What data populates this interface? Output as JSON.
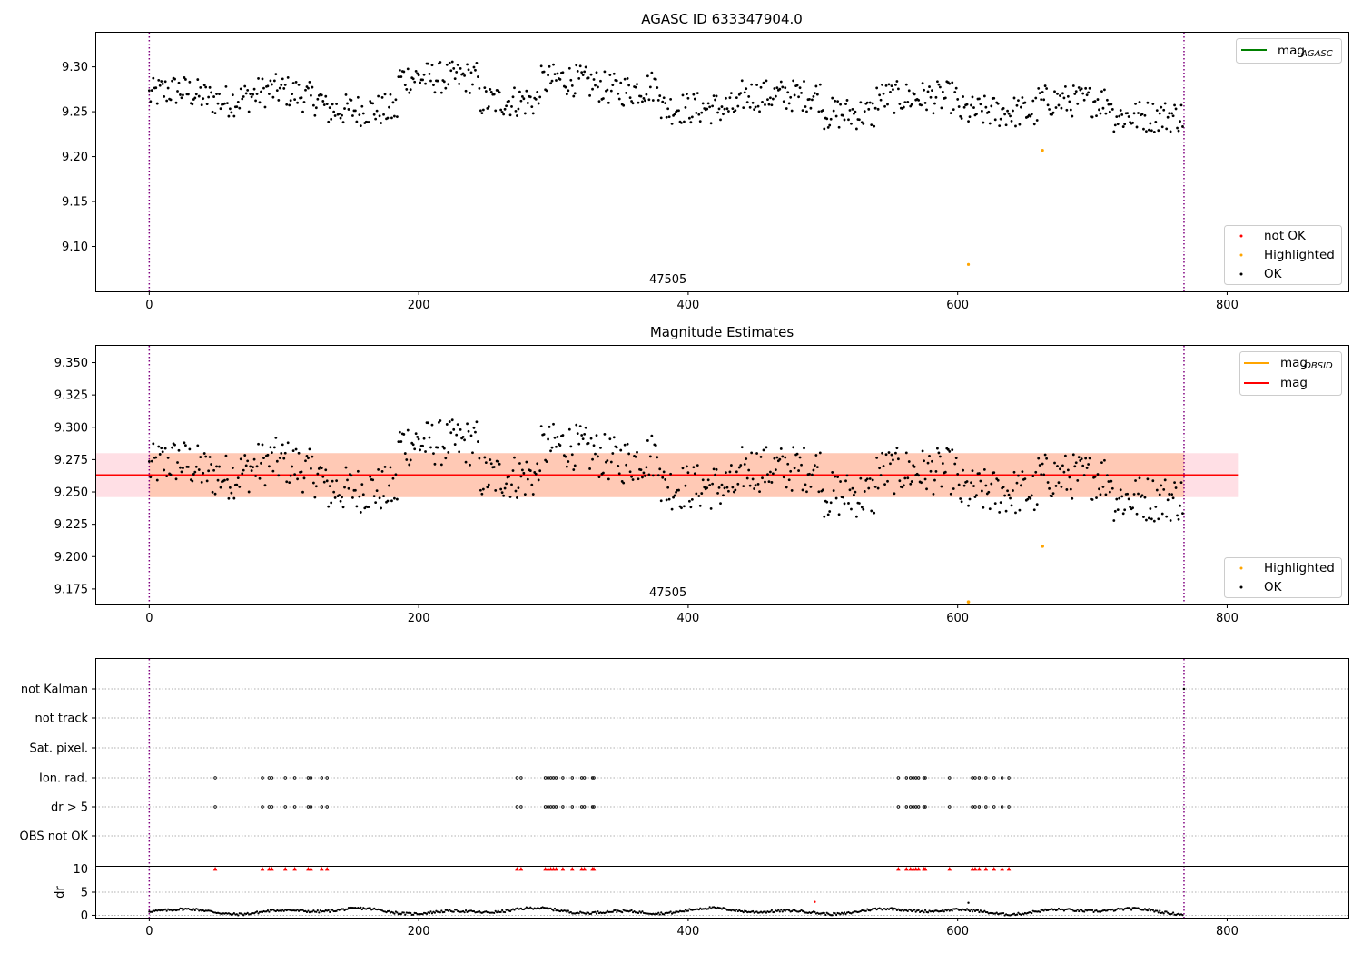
{
  "figure": {
    "panels": [
      "agasc",
      "estimates",
      "flags"
    ]
  },
  "chart_data": [
    {
      "id": "agasc",
      "type": "scatter",
      "title": "AGASC ID 633347904.0",
      "xlim": [
        -40,
        890
      ],
      "ylim": [
        9.05,
        9.338
      ],
      "xticks": [
        0,
        200,
        400,
        600,
        800
      ],
      "yticks": [
        9.1,
        9.15,
        9.2,
        9.25,
        9.3
      ],
      "ytick_labels": [
        "9.10",
        "9.15",
        "9.20",
        "9.25",
        "9.30"
      ],
      "obs_boundaries": [
        0,
        768
      ],
      "obs_label": {
        "x": 385,
        "text": "47505"
      },
      "series": [
        {
          "name": "not OK",
          "color": "#ff0000",
          "points": []
        },
        {
          "name": "Highlighted",
          "color": "#ffa500",
          "points": [
            [
              608,
              9.08
            ],
            [
              663,
              9.207
            ]
          ]
        },
        {
          "name": "OK",
          "color": "#000000",
          "generated_from": "ok_trend"
        }
      ],
      "legend_lines": [
        {
          "label": "mag",
          "sub": "AGASC",
          "color": "#008000"
        }
      ],
      "grid": false
    },
    {
      "id": "estimates",
      "type": "scatter",
      "title": "Magnitude Estimates",
      "xlim": [
        -40,
        890
      ],
      "ylim": [
        9.163,
        9.363
      ],
      "xticks": [
        0,
        200,
        400,
        600,
        800
      ],
      "yticks": [
        9.175,
        9.2,
        9.225,
        9.25,
        9.275,
        9.3,
        9.325,
        9.35
      ],
      "ytick_labels": [
        "9.175",
        "9.200",
        "9.225",
        "9.250",
        "9.275",
        "9.300",
        "9.325",
        "9.350"
      ],
      "obs_boundaries": [
        0,
        768
      ],
      "obs_label": {
        "x": 385,
        "text": "47505"
      },
      "mag": 9.263,
      "mag_band": [
        9.246,
        9.28
      ],
      "band_xrange": [
        -40,
        808
      ],
      "series": [
        {
          "name": "Highlighted",
          "color": "#ffa500",
          "points": [
            [
              663,
              9.208
            ],
            [
              608,
              9.165
            ]
          ]
        },
        {
          "name": "OK",
          "color": "#000000",
          "generated_from": "ok_trend"
        }
      ],
      "legend_lines": [
        {
          "label": "mag",
          "sub": "OBSID",
          "color": "#ffa500"
        },
        {
          "label": "mag",
          "sub": "",
          "color": "#ff0000"
        }
      ],
      "grid": false
    },
    {
      "id": "flags",
      "type": "scatter",
      "xlim": [
        -40,
        890
      ],
      "xticks": [
        0,
        200,
        400,
        600,
        800
      ],
      "categories": [
        "not Kalman",
        "not track",
        "Sat. pixel.",
        "Ion. rad.",
        "dr > 5",
        "OBS not OK"
      ],
      "flag_x": [
        49,
        84,
        89,
        91,
        101,
        108,
        118,
        120,
        128,
        132,
        273,
        276,
        294,
        296,
        298,
        300,
        302,
        307,
        314,
        321,
        323,
        329,
        330,
        556,
        562,
        565,
        567,
        569,
        571,
        575,
        576,
        594,
        611,
        613,
        616,
        621,
        627,
        633,
        638
      ],
      "flag_rows": [
        "Ion. rad.",
        "dr > 5"
      ],
      "dr": {
        "yticks": [
          0,
          5,
          10
        ],
        "ytick_labels": [
          "0",
          "5",
          "10"
        ],
        "ylim": [
          -0.5,
          10.5
        ],
        "ylabel": "dr",
        "clipped_value": 10,
        "clipped_color": "#ff0000",
        "outliers": [
          [
            494,
            2.9
          ],
          [
            608,
            2.7
          ]
        ]
      },
      "obs_boundaries": [
        0,
        768
      ],
      "grid": true
    }
  ]
}
